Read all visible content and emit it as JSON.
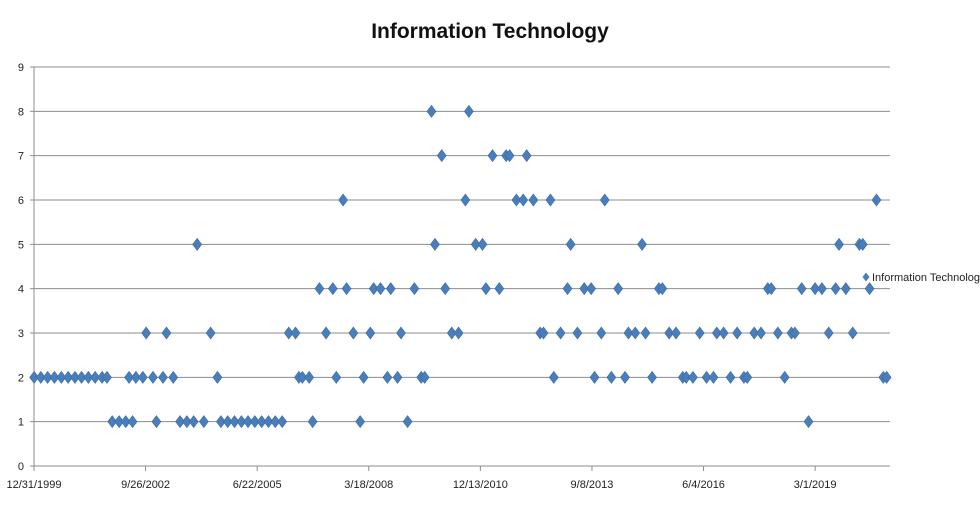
{
  "chart_data": {
    "type": "scatter",
    "title": "Information Technology",
    "xlabel": "",
    "ylabel": "",
    "ylim": [
      0,
      9
    ],
    "yticks": [
      0,
      1,
      2,
      3,
      4,
      5,
      6,
      7,
      8,
      9
    ],
    "xlim": [
      "1999-12-31",
      "2020-12-31"
    ],
    "xtick_labels": [
      {
        "date": "1999-12-31",
        "label": "12/31/1999"
      },
      {
        "date": "2002-09-26",
        "label": "9/26/2002"
      },
      {
        "date": "2005-06-22",
        "label": "6/22/2005"
      },
      {
        "date": "2008-03-18",
        "label": "3/18/2008"
      },
      {
        "date": "2010-12-13",
        "label": "12/13/2010"
      },
      {
        "date": "2013-09-08",
        "label": "9/8/2013"
      },
      {
        "date": "2016-06-04",
        "label": "6/4/2016"
      },
      {
        "date": "2019-03-01",
        "label": "3/1/2019"
      }
    ],
    "grid": "horizontal",
    "legend_position": "right",
    "marker": "diamond",
    "color": "#4A7EBB",
    "series": [
      {
        "name": "Information Technology",
        "points": [
          {
            "x": "2000-01-01",
            "y": 2
          },
          {
            "x": "2000-03-01",
            "y": 2
          },
          {
            "x": "2000-05-01",
            "y": 2
          },
          {
            "x": "2000-07-01",
            "y": 2
          },
          {
            "x": "2000-09-01",
            "y": 2
          },
          {
            "x": "2000-11-01",
            "y": 2
          },
          {
            "x": "2001-01-01",
            "y": 2
          },
          {
            "x": "2001-03-01",
            "y": 2
          },
          {
            "x": "2001-05-01",
            "y": 2
          },
          {
            "x": "2001-07-01",
            "y": 2
          },
          {
            "x": "2001-09-01",
            "y": 2
          },
          {
            "x": "2001-10-15",
            "y": 2
          },
          {
            "x": "2001-12-01",
            "y": 1
          },
          {
            "x": "2002-02-01",
            "y": 1
          },
          {
            "x": "2002-04-01",
            "y": 1
          },
          {
            "x": "2002-06-01",
            "y": 1
          },
          {
            "x": "2002-05-01",
            "y": 2
          },
          {
            "x": "2002-07-01",
            "y": 2
          },
          {
            "x": "2002-09-01",
            "y": 2
          },
          {
            "x": "2002-10-01",
            "y": 3
          },
          {
            "x": "2002-12-01",
            "y": 2
          },
          {
            "x": "2003-01-01",
            "y": 1
          },
          {
            "x": "2003-03-01",
            "y": 2
          },
          {
            "x": "2003-04-01",
            "y": 3
          },
          {
            "x": "2003-06-01",
            "y": 2
          },
          {
            "x": "2003-08-01",
            "y": 1
          },
          {
            "x": "2003-10-01",
            "y": 1
          },
          {
            "x": "2003-12-01",
            "y": 1
          },
          {
            "x": "2004-01-01",
            "y": 5
          },
          {
            "x": "2004-03-01",
            "y": 1
          },
          {
            "x": "2004-05-01",
            "y": 3
          },
          {
            "x": "2004-07-01",
            "y": 2
          },
          {
            "x": "2004-08-01",
            "y": 1
          },
          {
            "x": "2004-10-01",
            "y": 1
          },
          {
            "x": "2004-12-01",
            "y": 1
          },
          {
            "x": "2005-02-01",
            "y": 1
          },
          {
            "x": "2005-04-01",
            "y": 1
          },
          {
            "x": "2005-06-01",
            "y": 1
          },
          {
            "x": "2005-08-01",
            "y": 1
          },
          {
            "x": "2005-10-01",
            "y": 1
          },
          {
            "x": "2005-12-01",
            "y": 1
          },
          {
            "x": "2006-02-01",
            "y": 1
          },
          {
            "x": "2006-04-01",
            "y": 3
          },
          {
            "x": "2006-06-01",
            "y": 3
          },
          {
            "x": "2006-07-01",
            "y": 2
          },
          {
            "x": "2006-08-01",
            "y": 2
          },
          {
            "x": "2006-10-01",
            "y": 2
          },
          {
            "x": "2006-11-01",
            "y": 1
          },
          {
            "x": "2007-01-01",
            "y": 4
          },
          {
            "x": "2007-03-01",
            "y": 3
          },
          {
            "x": "2007-05-01",
            "y": 4
          },
          {
            "x": "2007-06-01",
            "y": 2
          },
          {
            "x": "2007-08-01",
            "y": 6
          },
          {
            "x": "2007-09-01",
            "y": 4
          },
          {
            "x": "2007-11-01",
            "y": 3
          },
          {
            "x": "2008-01-01",
            "y": 1
          },
          {
            "x": "2008-02-01",
            "y": 2
          },
          {
            "x": "2008-04-01",
            "y": 3
          },
          {
            "x": "2008-05-01",
            "y": 4
          },
          {
            "x": "2008-07-01",
            "y": 4
          },
          {
            "x": "2008-09-01",
            "y": 2
          },
          {
            "x": "2008-10-01",
            "y": 4
          },
          {
            "x": "2008-12-01",
            "y": 2
          },
          {
            "x": "2009-01-01",
            "y": 3
          },
          {
            "x": "2009-03-01",
            "y": 1
          },
          {
            "x": "2009-05-01",
            "y": 4
          },
          {
            "x": "2009-07-01",
            "y": 2
          },
          {
            "x": "2009-08-01",
            "y": 2
          },
          {
            "x": "2009-10-01",
            "y": 8
          },
          {
            "x": "2009-11-01",
            "y": 5
          },
          {
            "x": "2010-01-01",
            "y": 7
          },
          {
            "x": "2010-02-01",
            "y": 4
          },
          {
            "x": "2010-04-01",
            "y": 3
          },
          {
            "x": "2010-06-01",
            "y": 3
          },
          {
            "x": "2010-08-01",
            "y": 6
          },
          {
            "x": "2010-09-01",
            "y": 8
          },
          {
            "x": "2010-11-01",
            "y": 5
          },
          {
            "x": "2011-01-01",
            "y": 5
          },
          {
            "x": "2011-02-01",
            "y": 4
          },
          {
            "x": "2011-04-01",
            "y": 7
          },
          {
            "x": "2011-06-01",
            "y": 4
          },
          {
            "x": "2011-08-01",
            "y": 7
          },
          {
            "x": "2011-09-01",
            "y": 7
          },
          {
            "x": "2011-11-01",
            "y": 6
          },
          {
            "x": "2012-01-01",
            "y": 6
          },
          {
            "x": "2012-02-01",
            "y": 7
          },
          {
            "x": "2012-04-01",
            "y": 6
          },
          {
            "x": "2012-06-01",
            "y": 3
          },
          {
            "x": "2012-07-01",
            "y": 3
          },
          {
            "x": "2012-09-01",
            "y": 6
          },
          {
            "x": "2012-10-01",
            "y": 2
          },
          {
            "x": "2012-12-01",
            "y": 3
          },
          {
            "x": "2013-02-01",
            "y": 4
          },
          {
            "x": "2013-03-01",
            "y": 5
          },
          {
            "x": "2013-05-01",
            "y": 3
          },
          {
            "x": "2013-07-01",
            "y": 4
          },
          {
            "x": "2013-09-01",
            "y": 4
          },
          {
            "x": "2013-10-01",
            "y": 2
          },
          {
            "x": "2013-12-01",
            "y": 3
          },
          {
            "x": "2014-01-01",
            "y": 6
          },
          {
            "x": "2014-03-01",
            "y": 2
          },
          {
            "x": "2014-05-01",
            "y": 4
          },
          {
            "x": "2014-07-01",
            "y": 2
          },
          {
            "x": "2014-08-01",
            "y": 3
          },
          {
            "x": "2014-10-01",
            "y": 3
          },
          {
            "x": "2014-12-01",
            "y": 5
          },
          {
            "x": "2015-01-01",
            "y": 3
          },
          {
            "x": "2015-03-01",
            "y": 2
          },
          {
            "x": "2015-05-01",
            "y": 4
          },
          {
            "x": "2015-06-01",
            "y": 4
          },
          {
            "x": "2015-08-01",
            "y": 3
          },
          {
            "x": "2015-10-01",
            "y": 3
          },
          {
            "x": "2015-12-01",
            "y": 2
          },
          {
            "x": "2016-01-01",
            "y": 2
          },
          {
            "x": "2016-03-01",
            "y": 2
          },
          {
            "x": "2016-05-01",
            "y": 3
          },
          {
            "x": "2016-07-01",
            "y": 2
          },
          {
            "x": "2016-09-01",
            "y": 2
          },
          {
            "x": "2016-10-01",
            "y": 3
          },
          {
            "x": "2016-12-01",
            "y": 3
          },
          {
            "x": "2017-02-01",
            "y": 2
          },
          {
            "x": "2017-04-01",
            "y": 3
          },
          {
            "x": "2017-06-01",
            "y": 2
          },
          {
            "x": "2017-07-01",
            "y": 2
          },
          {
            "x": "2017-09-01",
            "y": 3
          },
          {
            "x": "2017-11-01",
            "y": 3
          },
          {
            "x": "2018-01-01",
            "y": 4
          },
          {
            "x": "2018-02-01",
            "y": 4
          },
          {
            "x": "2018-04-01",
            "y": 3
          },
          {
            "x": "2018-06-01",
            "y": 2
          },
          {
            "x": "2018-08-01",
            "y": 3
          },
          {
            "x": "2018-09-01",
            "y": 3
          },
          {
            "x": "2018-11-01",
            "y": 4
          },
          {
            "x": "2019-01-01",
            "y": 1
          },
          {
            "x": "2019-03-01",
            "y": 4
          },
          {
            "x": "2019-05-01",
            "y": 4
          },
          {
            "x": "2019-07-01",
            "y": 3
          },
          {
            "x": "2019-09-01",
            "y": 4
          },
          {
            "x": "2019-10-01",
            "y": 5
          },
          {
            "x": "2019-12-01",
            "y": 4
          },
          {
            "x": "2020-02-01",
            "y": 3
          },
          {
            "x": "2020-04-01",
            "y": 5
          },
          {
            "x": "2020-05-01",
            "y": 5
          },
          {
            "x": "2020-07-01",
            "y": 4
          },
          {
            "x": "2020-09-01",
            "y": 6
          },
          {
            "x": "2020-11-01",
            "y": 2
          },
          {
            "x": "2020-12-01",
            "y": 2
          }
        ]
      }
    ]
  }
}
